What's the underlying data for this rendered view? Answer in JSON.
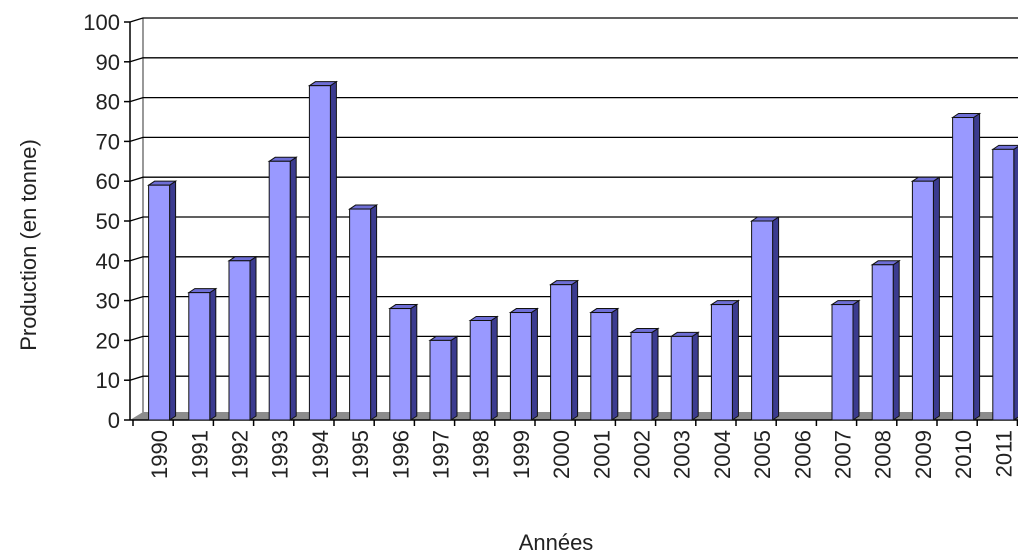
{
  "chart_data": {
    "type": "bar",
    "title": "",
    "xlabel": "Années",
    "ylabel": "Production (en tonne)",
    "ylim": [
      0,
      100
    ],
    "yticks": [
      0,
      10,
      20,
      30,
      40,
      50,
      60,
      70,
      80,
      90,
      100
    ],
    "grid": true,
    "legend": "none",
    "bar_style": "3d",
    "colors": {
      "bar_front": "#9999ff",
      "bar_side": "#3b3b8f",
      "bar_top": "#6e6ed6",
      "floor": "#8c8c8c",
      "gridline": "#000000"
    },
    "categories": [
      "1990",
      "1991",
      "1992",
      "1993",
      "1994",
      "1995",
      "1996",
      "1997",
      "1998",
      "1999",
      "2000",
      "2001",
      "2002",
      "2003",
      "2004",
      "2005",
      "2006",
      "2007",
      "2008",
      "2009",
      "2010",
      "2011"
    ],
    "values": [
      59,
      32,
      40,
      65,
      84,
      53,
      28,
      20,
      25,
      27,
      34,
      27,
      22,
      21,
      29,
      50,
      0,
      29,
      39,
      60,
      76,
      68
    ]
  }
}
